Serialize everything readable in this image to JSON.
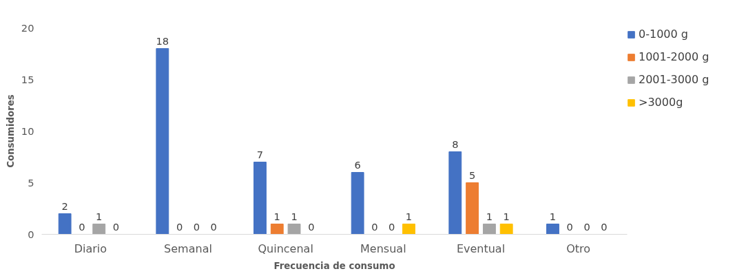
{
  "chart_data": {
    "type": "bar",
    "xlabel": "Frecuencia de consumo",
    "ylabel": "Consumidores",
    "categories": [
      "Diario",
      "Semanal",
      "Quincenal",
      "Mensual",
      "Eventual",
      "Otro"
    ],
    "series": [
      {
        "name": "0-1000 g",
        "color": "#4472c4",
        "values": [
          2,
          18,
          7,
          6,
          8,
          1
        ]
      },
      {
        "name": "1001-2000 g",
        "color": "#ed7d31",
        "values": [
          0,
          0,
          1,
          0,
          5,
          0
        ]
      },
      {
        "name": "2001-3000 g",
        "color": "#a5a5a5",
        "values": [
          1,
          0,
          1,
          0,
          1,
          0
        ]
      },
      {
        "name": ">3000g",
        "color": "#ffc000",
        "values": [
          0,
          0,
          0,
          1,
          1,
          0
        ]
      }
    ],
    "ylim": [
      0,
      20
    ],
    "yticks": [
      0,
      5,
      10,
      15,
      20
    ],
    "grid": false,
    "legend": "right",
    "data_labels": true
  }
}
